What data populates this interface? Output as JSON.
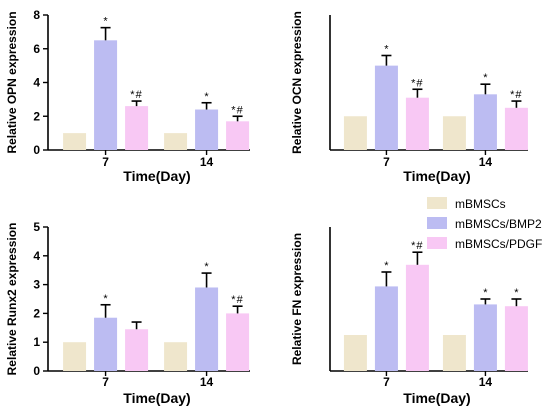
{
  "colors": {
    "mBMSCs": "#efe6cc",
    "mBMSCs/BMP2": "#bcbcf2",
    "mBMSCs/PDGF": "#f8c8f4"
  },
  "legend": {
    "position": "top-right of bottom-right panel",
    "entries": [
      "mBMSCs",
      "mBMSCs/BMP2",
      "mBMSCs/PDGF"
    ]
  },
  "chart_data": [
    {
      "type": "bar",
      "panel": "top-left",
      "title": "",
      "xlabel": "Time(Day)",
      "ylabel": "Relative OPN expression",
      "ylim": [
        0,
        8
      ],
      "yticks": [
        0,
        2,
        4,
        6,
        8
      ],
      "categories": [
        "7",
        "14"
      ],
      "series": [
        {
          "name": "mBMSCs",
          "values": [
            1,
            1
          ],
          "errors": [
            0,
            0
          ],
          "annotations": [
            "",
            ""
          ]
        },
        {
          "name": "mBMSCs/BMP2",
          "values": [
            6.5,
            2.4
          ],
          "errors": [
            0.75,
            0.4
          ],
          "annotations": [
            "*",
            "*"
          ]
        },
        {
          "name": "mBMSCs/PDGF",
          "values": [
            2.6,
            1.7
          ],
          "errors": [
            0.3,
            0.3
          ],
          "annotations": [
            "*,#",
            "*,#"
          ]
        }
      ]
    },
    {
      "type": "bar",
      "panel": "top-right",
      "title": "",
      "xlabel": "Time(Day)",
      "ylabel": "Relative OCN expression",
      "ylim": [
        0,
        4
      ],
      "yticks": [],
      "categories": [
        "7",
        "14"
      ],
      "series": [
        {
          "name": "mBMSCs",
          "values": [
            1,
            1
          ],
          "errors": [
            0,
            0
          ],
          "annotations": [
            "",
            ""
          ]
        },
        {
          "name": "mBMSCs/BMP2",
          "values": [
            2.5,
            1.65
          ],
          "errors": [
            0.3,
            0.3
          ],
          "annotations": [
            "*",
            "*"
          ]
        },
        {
          "name": "mBMSCs/PDGF",
          "values": [
            1.55,
            1.25
          ],
          "errors": [
            0.25,
            0.2
          ],
          "annotations": [
            "*,#",
            "*,#"
          ]
        }
      ]
    },
    {
      "type": "bar",
      "panel": "bottom-left",
      "title": "",
      "xlabel": "Time(Day)",
      "ylabel": "Relative Runx2 expression",
      "ylim": [
        0,
        5
      ],
      "yticks": [
        0,
        1,
        2,
        3,
        4,
        5
      ],
      "categories": [
        "7",
        "14"
      ],
      "series": [
        {
          "name": "mBMSCs",
          "values": [
            1,
            1
          ],
          "errors": [
            0,
            0
          ],
          "annotations": [
            "",
            ""
          ]
        },
        {
          "name": "mBMSCs/BMP2",
          "values": [
            1.85,
            2.9
          ],
          "errors": [
            0.45,
            0.5
          ],
          "annotations": [
            "*",
            "*"
          ]
        },
        {
          "name": "mBMSCs/PDGF",
          "values": [
            1.45,
            2.0
          ],
          "errors": [
            0.25,
            0.25
          ],
          "annotations": [
            "",
            "*,#"
          ]
        }
      ]
    },
    {
      "type": "bar",
      "panel": "bottom-right",
      "title": "",
      "xlabel": "Time(Day)",
      "ylabel": "Relative FN expression",
      "ylim": [
        0,
        4
      ],
      "yticks": [],
      "categories": [
        "7",
        "14"
      ],
      "series": [
        {
          "name": "mBMSCs",
          "values": [
            1,
            1
          ],
          "errors": [
            0,
            0
          ],
          "annotations": [
            "",
            ""
          ]
        },
        {
          "name": "mBMSCs/BMP2",
          "values": [
            2.35,
            1.85
          ],
          "errors": [
            0.4,
            0.15
          ],
          "annotations": [
            "*",
            "*"
          ]
        },
        {
          "name": "mBMSCs/PDGF",
          "values": [
            2.95,
            1.8
          ],
          "errors": [
            0.35,
            0.2
          ],
          "annotations": [
            "*,#",
            "*"
          ]
        }
      ]
    }
  ]
}
